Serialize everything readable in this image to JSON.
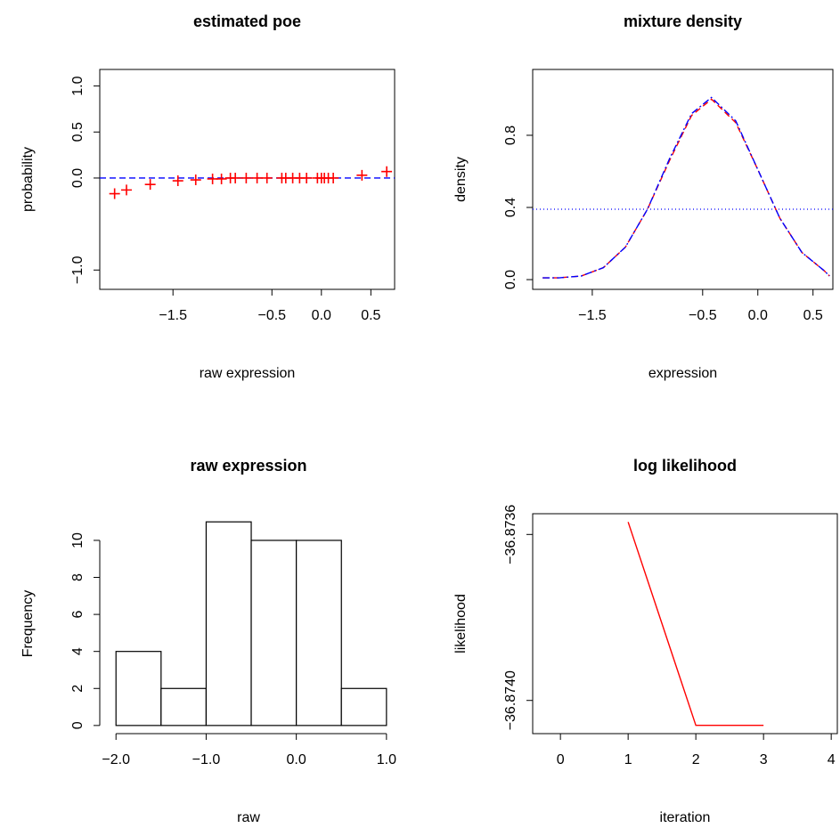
{
  "chart_data": [
    {
      "type": "scatter",
      "title": "estimated poe",
      "x_label": "raw expression",
      "y_label": "probability",
      "x": [
        -2.09,
        -1.97,
        -1.73,
        -1.45,
        -1.27,
        -1.1,
        -1.01,
        -0.92,
        -0.87,
        -0.76,
        -0.65,
        -0.55,
        -0.4,
        -0.36,
        -0.29,
        -0.22,
        -0.15,
        -0.04,
        0.0,
        0.03,
        0.07,
        0.12,
        0.41,
        0.66
      ],
      "values": [
        -0.17,
        -0.13,
        -0.07,
        -0.03,
        -0.02,
        -0.01,
        -0.01,
        0,
        0,
        0,
        0,
        0,
        0,
        0,
        0,
        0,
        0,
        0,
        0,
        0,
        0,
        0,
        0.03,
        0.07
      ],
      "color": "#ff0000",
      "hline": 0,
      "hline_color": "#0000ff",
      "box": true,
      "xlim": [
        -2.24,
        0.74
      ],
      "ylim": [
        -1.21,
        1.18
      ],
      "xticks": [
        {
          "value": -1.5,
          "label": "−1.5"
        },
        {
          "value": -0.5,
          "label": "−0.5"
        },
        {
          "value": 0,
          "label": "0.0"
        },
        0.5
      ],
      "yticks": [
        {
          "value": -1,
          "label": "−1.0"
        },
        {
          "value": 0,
          "label": "0.0"
        },
        0.5,
        {
          "value": 1,
          "label": "1.0"
        }
      ]
    },
    {
      "type": "line",
      "title": "mixture density",
      "x_label": "expression",
      "y_label": "density",
      "x": [
        -1.95,
        -1.8,
        -1.6,
        -1.4,
        -1.2,
        -1.0,
        -0.8,
        -0.6,
        -0.42,
        -0.2,
        0,
        0.2,
        0.4,
        0.6,
        0.65
      ],
      "series": [
        {
          "color": "#ff0000",
          "linestyle": "dashed",
          "values": [
            0.01,
            0.01,
            0.02,
            0.066,
            0.18,
            0.39,
            0.66,
            0.91,
            1.0,
            0.87,
            0.61,
            0.34,
            0.15,
            0.05,
            0.02
          ]
        },
        {
          "color": "#0000ff",
          "linestyle": "dashdot",
          "values": [
            0.01,
            0.01,
            0.02,
            0.066,
            0.18,
            0.39,
            0.67,
            0.92,
            1.01,
            0.88,
            0.61,
            0.34,
            0.15,
            0.05,
            0.02
          ]
        }
      ],
      "hline": 0.39,
      "hline_color": "#0000ff",
      "box": true,
      "xlim": [
        -2.04,
        0.68
      ],
      "ylim": [
        -0.054,
        1.165
      ],
      "xticks": [
        {
          "value": -1.5,
          "label": "−1.5"
        },
        {
          "value": -0.5,
          "label": "−0.5"
        },
        {
          "value": 0,
          "label": "0.0"
        },
        0.5
      ],
      "yticks": [
        {
          "value": 0,
          "label": "0.0"
        },
        0.4,
        0.8
      ]
    },
    {
      "type": "histogram",
      "title": "raw expression",
      "x_label": "raw",
      "y_label": "Frequency",
      "bins": [
        -2.0,
        -1.5,
        -1.0,
        -0.5,
        0,
        0.5,
        1.0
      ],
      "values": [
        4,
        2,
        11,
        10,
        10,
        2
      ],
      "color": "#ffffff",
      "box": false,
      "xlim": [
        -2.18,
        1.12
      ],
      "ylim": [
        -0.44,
        11.44
      ],
      "xticks": [
        {
          "value": -2,
          "label": "−2.0"
        },
        {
          "value": -1,
          "label": "−1.0"
        },
        {
          "value": 0,
          "label": "0.0"
        },
        {
          "value": 1,
          "label": "1.0"
        }
      ],
      "yticks": [
        0,
        2,
        4,
        6,
        8,
        10
      ]
    },
    {
      "type": "line",
      "title": "log likelihood",
      "x_label": "iteration",
      "y_label": "likelihood",
      "x": [
        1,
        2,
        3
      ],
      "series": [
        {
          "color": "#ff0000",
          "linestyle": "solid",
          "values": [
            -36.87357,
            -36.87406,
            -36.87406
          ]
        }
      ],
      "box": true,
      "xlim": [
        -0.41,
        4.09
      ],
      "ylim": [
        -36.87408,
        -36.87355
      ],
      "xticks": [
        0,
        1,
        2,
        3,
        4
      ],
      "yticks": [
        {
          "value": -36.8736,
          "label": "−36.8736"
        },
        {
          "value": -36.874,
          "label": "−36.8740"
        }
      ]
    }
  ]
}
